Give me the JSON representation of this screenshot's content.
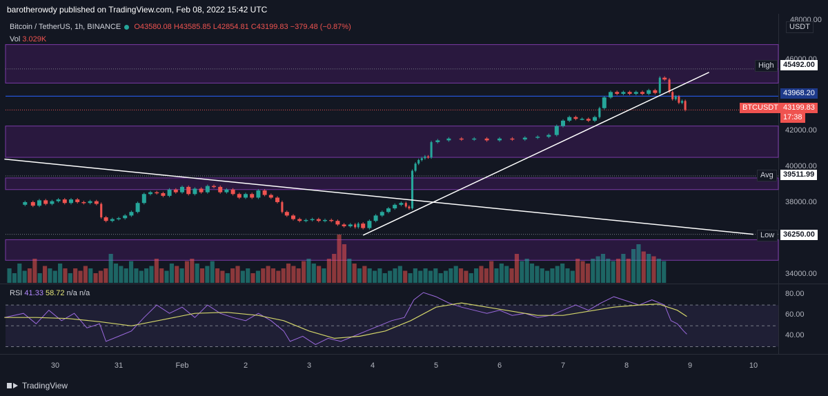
{
  "header": {
    "publisher_text": "barotherowdy published on TradingView.com, Feb 08, 2022 15:42 UTC"
  },
  "legend": {
    "symbol": "Bitcoin / TetherUS, 1h, BINANCE",
    "open": "O43580.08",
    "high": "H43585.85",
    "low": "L42854.81",
    "close": "C43199.83",
    "change": "−379.48 (−0.87%)",
    "vol_label": "Vol",
    "vol_value": "3.029K"
  },
  "rsi_legend": {
    "label": "RSI",
    "value1": "41.33",
    "value2": "58.72",
    "na1": "n/a",
    "na2": "n/a"
  },
  "price_axis": {
    "currency": "USDT",
    "top_tick": "48000.00",
    "ticks": [
      {
        "label": "46000.00",
        "value": 46000
      },
      {
        "label": "42000.00",
        "value": 42000
      },
      {
        "label": "40000.00",
        "value": 40000
      },
      {
        "label": "38000.00",
        "value": 38000
      },
      {
        "label": "34000.00",
        "value": 34000
      }
    ]
  },
  "rsi_axis": {
    "ticks": [
      {
        "label": "80.00",
        "value": 80
      },
      {
        "label": "60.00",
        "value": 60
      },
      {
        "label": "40.00",
        "value": 40
      }
    ]
  },
  "badges": {
    "high_label": "High",
    "high_value": "45492.00",
    "blue_value": "43968.20",
    "symbol_label": "BTCUSDT",
    "current_value": "43199.83",
    "countdown": "17:38",
    "avg_label": "Avg",
    "avg_value": "39511.99",
    "low_label": "Low",
    "low_value": "36250.00"
  },
  "x_axis": {
    "labels": [
      {
        "label": "30",
        "pos": 0
      },
      {
        "label": "31",
        "pos": 1
      },
      {
        "label": "Feb",
        "pos": 2
      },
      {
        "label": "2",
        "pos": 3
      },
      {
        "label": "3",
        "pos": 4
      },
      {
        "label": "4",
        "pos": 5
      },
      {
        "label": "5",
        "pos": 6
      },
      {
        "label": "6",
        "pos": 7
      },
      {
        "label": "7",
        "pos": 8
      },
      {
        "label": "8",
        "pos": 9
      },
      {
        "label": "9",
        "pos": 10
      },
      {
        "label": "10",
        "pos": 11
      }
    ]
  },
  "footer": {
    "brand": "TradingView"
  },
  "chart_data": {
    "type": "candlestick",
    "symbol": "BTCUSDT",
    "interval": "1h",
    "xlabel": "",
    "ylabel": "",
    "ylim": [
      33500,
      48300
    ],
    "price_path": [
      [
        -0.55,
        37900
      ],
      [
        -0.4,
        38050
      ],
      [
        -0.3,
        37850
      ],
      [
        -0.2,
        38150
      ],
      [
        -0.1,
        37950
      ],
      [
        0.0,
        38100
      ],
      [
        0.1,
        38200
      ],
      [
        0.2,
        38000
      ],
      [
        0.3,
        38200
      ],
      [
        0.4,
        38050
      ],
      [
        0.5,
        38000
      ],
      [
        0.6,
        38100
      ],
      [
        0.7,
        37950
      ],
      [
        0.75,
        37200
      ],
      [
        0.85,
        37000
      ],
      [
        0.95,
        37100
      ],
      [
        1.05,
        37150
      ],
      [
        1.15,
        37300
      ],
      [
        1.25,
        37500
      ],
      [
        1.35,
        38000
      ],
      [
        1.45,
        38500
      ],
      [
        1.55,
        38600
      ],
      [
        1.65,
        38550
      ],
      [
        1.75,
        38400
      ],
      [
        1.85,
        38750
      ],
      [
        1.95,
        38600
      ],
      [
        2.05,
        38900
      ],
      [
        2.15,
        38500
      ],
      [
        2.25,
        38800
      ],
      [
        2.35,
        38600
      ],
      [
        2.45,
        38950
      ],
      [
        2.55,
        38900
      ],
      [
        2.65,
        38600
      ],
      [
        2.75,
        38750
      ],
      [
        2.85,
        38500
      ],
      [
        2.95,
        38300
      ],
      [
        3.05,
        38500
      ],
      [
        3.15,
        38300
      ],
      [
        3.25,
        38700
      ],
      [
        3.35,
        38450
      ],
      [
        3.45,
        38300
      ],
      [
        3.55,
        38050
      ],
      [
        3.6,
        37500
      ],
      [
        3.7,
        37300
      ],
      [
        3.8,
        37100
      ],
      [
        3.9,
        37000
      ],
      [
        4.0,
        37050
      ],
      [
        4.1,
        37100
      ],
      [
        4.2,
        37000
      ],
      [
        4.3,
        37050
      ],
      [
        4.4,
        37000
      ],
      [
        4.5,
        36800
      ],
      [
        4.6,
        36700
      ],
      [
        4.7,
        36800
      ],
      [
        4.75,
        36650
      ],
      [
        4.8,
        36850
      ],
      [
        4.9,
        36600
      ],
      [
        5.0,
        37000
      ],
      [
        5.1,
        37300
      ],
      [
        5.2,
        37500
      ],
      [
        5.3,
        37700
      ],
      [
        5.4,
        37900
      ],
      [
        5.5,
        38000
      ],
      [
        5.55,
        37800
      ],
      [
        5.6,
        37700
      ],
      [
        5.65,
        39800
      ],
      [
        5.7,
        40200
      ],
      [
        5.75,
        40400
      ],
      [
        5.8,
        40500
      ],
      [
        5.85,
        40600
      ],
      [
        5.9,
        40550
      ],
      [
        5.95,
        41400
      ],
      [
        6.1,
        41500
      ],
      [
        6.3,
        41600
      ],
      [
        6.5,
        41550
      ],
      [
        6.7,
        41600
      ],
      [
        6.9,
        41500
      ],
      [
        7.1,
        41600
      ],
      [
        7.3,
        41550
      ],
      [
        7.5,
        41650
      ],
      [
        7.7,
        41700
      ],
      [
        7.85,
        41800
      ],
      [
        7.95,
        42300
      ],
      [
        8.05,
        42600
      ],
      [
        8.15,
        42800
      ],
      [
        8.25,
        42700
      ],
      [
        8.35,
        42700
      ],
      [
        8.45,
        42600
      ],
      [
        8.55,
        42800
      ],
      [
        8.6,
        43300
      ],
      [
        8.7,
        43900
      ],
      [
        8.8,
        44200
      ],
      [
        8.9,
        44100
      ],
      [
        9.0,
        44200
      ],
      [
        9.1,
        44100
      ],
      [
        9.2,
        44200
      ],
      [
        9.3,
        44100
      ],
      [
        9.4,
        44300
      ],
      [
        9.5,
        44150
      ],
      [
        9.55,
        45000
      ],
      [
        9.65,
        44900
      ],
      [
        9.7,
        44200
      ],
      [
        9.75,
        43800
      ],
      [
        9.8,
        43950
      ],
      [
        9.85,
        43600
      ],
      [
        9.9,
        43700
      ],
      [
        9.95,
        43200
      ]
    ],
    "volume_levels": [
      0.3,
      0.2,
      0.4,
      0.25,
      0.3,
      0.5,
      0.2,
      0.35,
      0.3,
      0.25,
      0.4,
      0.3,
      0.2,
      0.3,
      0.25,
      0.35,
      0.3,
      0.2,
      0.25,
      0.3,
      0.6,
      0.4,
      0.35,
      0.3,
      0.45,
      0.3,
      0.25,
      0.3,
      0.35,
      0.5,
      0.3,
      0.25,
      0.4,
      0.35,
      0.3,
      0.45,
      0.5,
      0.4,
      0.3,
      0.35,
      0.45,
      0.3,
      0.25,
      0.2,
      0.3,
      0.35,
      0.25,
      0.3,
      0.2,
      0.25,
      0.3,
      0.35,
      0.3,
      0.25,
      0.3,
      0.4,
      0.35,
      0.3,
      0.45,
      0.5,
      0.4,
      0.35,
      0.3,
      0.5,
      0.6,
      1.0,
      0.8,
      0.5,
      0.4,
      0.3,
      0.35,
      0.3,
      0.25,
      0.3,
      0.2,
      0.25,
      0.3,
      0.35,
      0.25,
      0.2,
      0.3,
      0.25,
      0.3,
      0.25,
      0.3,
      0.2,
      0.25,
      0.3,
      0.35,
      0.3,
      0.25,
      0.2,
      0.3,
      0.35,
      0.3,
      0.45,
      0.3,
      0.4,
      0.35,
      0.3,
      0.6,
      0.45,
      0.5,
      0.4,
      0.35,
      0.3,
      0.25,
      0.3,
      0.35,
      0.4,
      0.3,
      0.25,
      0.5,
      0.45,
      0.4,
      0.5,
      0.55,
      0.6,
      0.5,
      0.45,
      0.5,
      0.6,
      0.5,
      0.7,
      0.8,
      0.65,
      0.6,
      0.55,
      0.5,
      0.45
    ],
    "zones": [
      {
        "from": 44700,
        "to": 46850
      },
      {
        "from": 40550,
        "to": 42300
      },
      {
        "from": 38750,
        "to": 39400
      },
      {
        "from": 34800,
        "to": 35950
      }
    ],
    "lines": {
      "high": 45492.0,
      "blue": 43968.2,
      "current": 43199.83,
      "avg": 39511.99,
      "low": 36250.0
    },
    "trendlines": [
      {
        "from": [
          -0.8,
          40450
        ],
        "to": [
          11.0,
          36250
        ]
      },
      {
        "from": [
          4.85,
          36200
        ],
        "to": [
          10.3,
          45300
        ]
      }
    ],
    "rsi": {
      "ylim": [
        25,
        88
      ],
      "levels": [
        70,
        50,
        30
      ],
      "rsi_path": [
        [
          -0.8,
          58
        ],
        [
          -0.5,
          62
        ],
        [
          -0.3,
          52
        ],
        [
          -0.1,
          65
        ],
        [
          0.1,
          55
        ],
        [
          0.3,
          62
        ],
        [
          0.5,
          48
        ],
        [
          0.7,
          52
        ],
        [
          0.8,
          35
        ],
        [
          1.0,
          40
        ],
        [
          1.2,
          45
        ],
        [
          1.4,
          58
        ],
        [
          1.6,
          70
        ],
        [
          1.8,
          62
        ],
        [
          2.0,
          68
        ],
        [
          2.2,
          58
        ],
        [
          2.4,
          70
        ],
        [
          2.6,
          62
        ],
        [
          2.8,
          58
        ],
        [
          3.0,
          55
        ],
        [
          3.2,
          62
        ],
        [
          3.4,
          55
        ],
        [
          3.6,
          45
        ],
        [
          3.7,
          35
        ],
        [
          3.9,
          40
        ],
        [
          4.1,
          32
        ],
        [
          4.3,
          38
        ],
        [
          4.5,
          35
        ],
        [
          4.7,
          40
        ],
        [
          4.9,
          45
        ],
        [
          5.1,
          50
        ],
        [
          5.3,
          55
        ],
        [
          5.5,
          58
        ],
        [
          5.65,
          75
        ],
        [
          5.8,
          82
        ],
        [
          6.0,
          78
        ],
        [
          6.2,
          72
        ],
        [
          6.4,
          68
        ],
        [
          6.6,
          65
        ],
        [
          6.8,
          62
        ],
        [
          7.0,
          65
        ],
        [
          7.2,
          60
        ],
        [
          7.4,
          62
        ],
        [
          7.6,
          58
        ],
        [
          7.8,
          60
        ],
        [
          8.0,
          65
        ],
        [
          8.2,
          70
        ],
        [
          8.4,
          65
        ],
        [
          8.6,
          72
        ],
        [
          8.8,
          78
        ],
        [
          9.0,
          74
        ],
        [
          9.2,
          70
        ],
        [
          9.4,
          75
        ],
        [
          9.6,
          70
        ],
        [
          9.7,
          55
        ],
        [
          9.8,
          52
        ],
        [
          9.9,
          45
        ],
        [
          9.95,
          42
        ]
      ],
      "ma_path": [
        [
          -0.8,
          58
        ],
        [
          -0.3,
          58
        ],
        [
          0.2,
          57
        ],
        [
          0.7,
          54
        ],
        [
          1.2,
          50
        ],
        [
          1.7,
          56
        ],
        [
          2.2,
          62
        ],
        [
          2.7,
          63
        ],
        [
          3.2,
          60
        ],
        [
          3.6,
          55
        ],
        [
          4.0,
          45
        ],
        [
          4.4,
          38
        ],
        [
          4.8,
          40
        ],
        [
          5.2,
          45
        ],
        [
          5.6,
          55
        ],
        [
          6.0,
          68
        ],
        [
          6.4,
          72
        ],
        [
          6.8,
          68
        ],
        [
          7.2,
          64
        ],
        [
          7.6,
          60
        ],
        [
          8.0,
          60
        ],
        [
          8.4,
          64
        ],
        [
          8.8,
          68
        ],
        [
          9.2,
          70
        ],
        [
          9.5,
          71
        ],
        [
          9.8,
          65
        ],
        [
          9.95,
          59
        ]
      ]
    }
  }
}
